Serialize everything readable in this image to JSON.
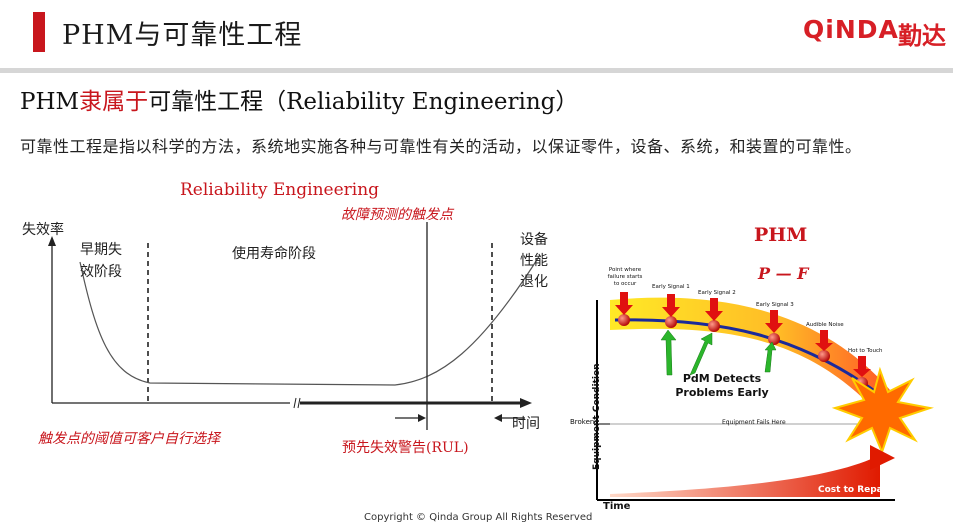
{
  "header": {
    "title": "PHM与可靠性工程",
    "logo_text": "QiNDA",
    "logo_cn": "勤达"
  },
  "subtitle": {
    "part1": "PHM",
    "part2_red": "隶属于",
    "part3": "可靠性工程（Reliability Engineering）"
  },
  "paragraph": "可靠性工程是指以科学的方法，系统地实施各种与可靠性有关的活动，以保证零件，设备、系统，和装置的可靠性。",
  "bathtub": {
    "title": "Reliability Engineering",
    "y_axis_label": "失效率",
    "early_phase": "早期失效阶段",
    "useful_life": "使用寿命阶段",
    "wearout": "设备性能退化",
    "trigger_point": "故障预测的触发点",
    "time_label": "时间",
    "threshold_note": "触发点的阈值可客户自行选择",
    "rul_label": "预先失效警告(RUL)"
  },
  "pf_curve": {
    "title": "PHM",
    "subtitle": "P — F",
    "y_axis": "Equipment Condition",
    "x_axis": "Time",
    "broken": "Broken",
    "pointer_labels": [
      "Point where failure starts to occur",
      "Early Signal 1",
      "Early Signal 2",
      "Early Signal 3",
      "Audible Noise",
      "Hot to Touch"
    ],
    "pdm_detects": "PdM Detects Problems Early",
    "equipment_fails": "Equipment Fails Here",
    "cost_to_repair": "Cost to Repair"
  },
  "footer": "Copyright © Qinda Group  All Rights Reserved",
  "colors": {
    "brand_red": "#d71f26",
    "accent_red": "#c8161d"
  }
}
